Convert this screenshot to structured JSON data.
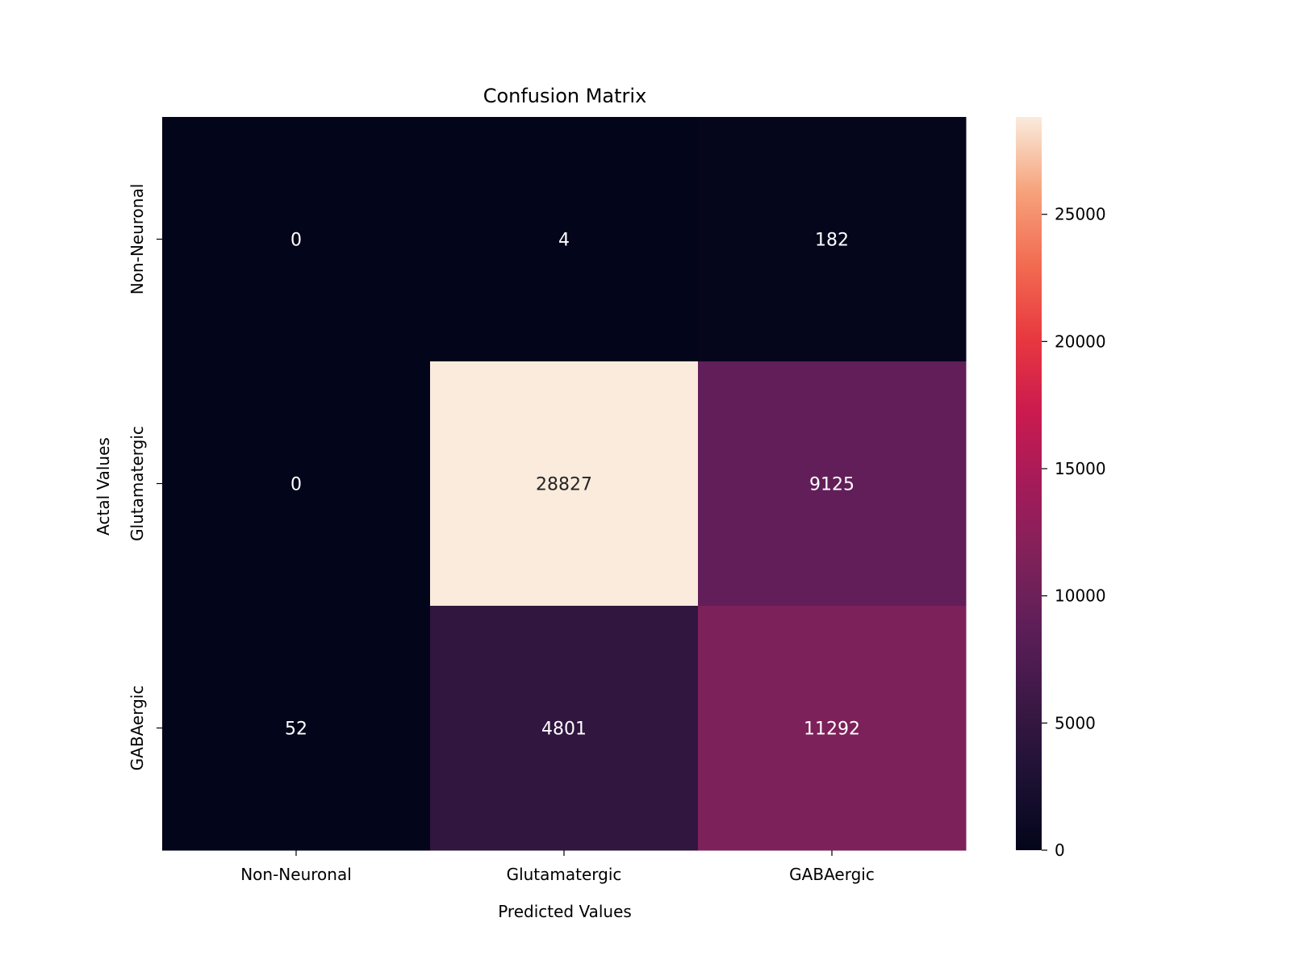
{
  "chart_data": {
    "type": "heatmap",
    "title": "Confusion Matrix",
    "xlabel": "Predicted Values",
    "ylabel": "Actal Values",
    "x_categories": [
      "Non-Neuronal",
      "Glutamatergic",
      "GABAergic"
    ],
    "y_categories": [
      "Non-Neuronal",
      "Glutamatergic",
      "GABAergic"
    ],
    "values": [
      [
        0,
        4,
        182
      ],
      [
        0,
        28827,
        9125
      ],
      [
        52,
        4801,
        11292
      ]
    ],
    "colorbar": {
      "range": [
        0,
        28827
      ],
      "ticks": [
        0,
        5000,
        10000,
        15000,
        20000,
        25000
      ],
      "colormap": "rocket"
    },
    "grid": false
  }
}
